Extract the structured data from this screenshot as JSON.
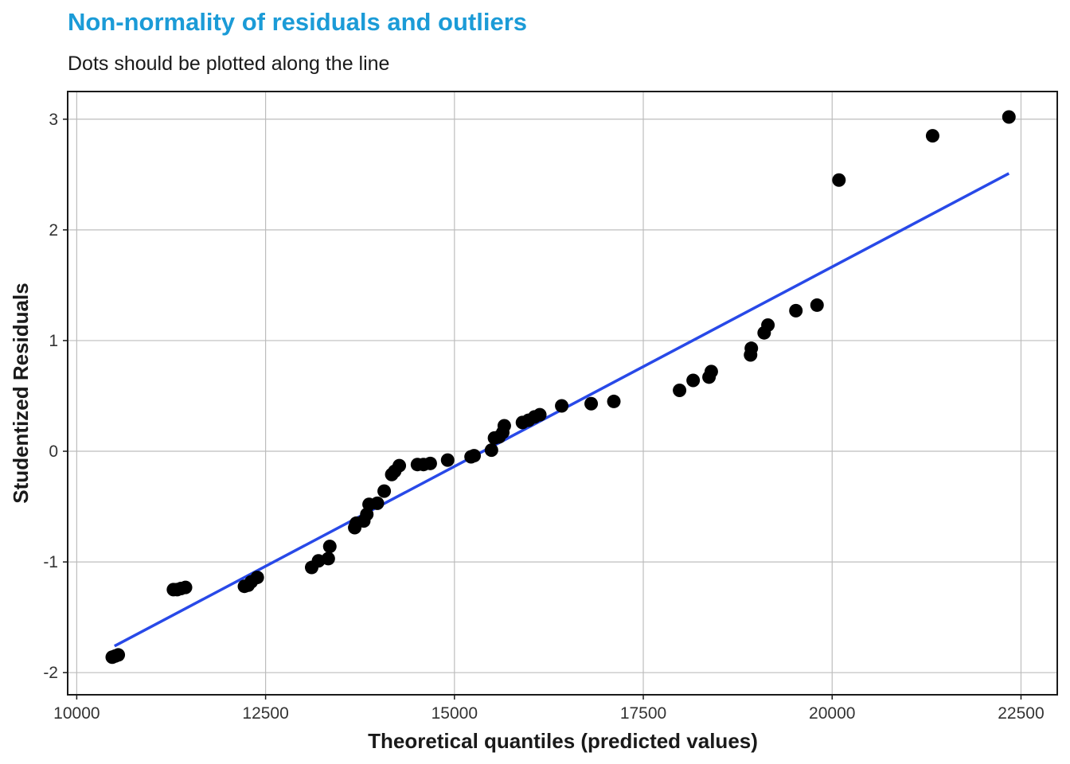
{
  "chart_data": {
    "type": "scatter",
    "title": "Non-normality of residuals and outliers",
    "subtitle": "Dots should be plotted along the line",
    "xlabel": "Theoretical quantiles (predicted values)",
    "ylabel": "Studentized Residuals",
    "xlim": [
      9880,
      22980
    ],
    "ylim": [
      -2.2,
      3.25
    ],
    "xticks": [
      10000,
      12500,
      15000,
      17500,
      20000,
      22500
    ],
    "xtick_labels": [
      "10000",
      "12500",
      "15000",
      "17500",
      "20000",
      "22500"
    ],
    "yticks": [
      -2,
      -1,
      0,
      1,
      2,
      3
    ],
    "ytick_labels": [
      "-2",
      "-1",
      "0",
      "1",
      "2",
      "3"
    ],
    "grid": true,
    "points": [
      {
        "x": 10470,
        "y": -1.86
      },
      {
        "x": 10510,
        "y": -1.85
      },
      {
        "x": 10550,
        "y": -1.84
      },
      {
        "x": 11280,
        "y": -1.25
      },
      {
        "x": 11330,
        "y": -1.25
      },
      {
        "x": 11380,
        "y": -1.24
      },
      {
        "x": 11440,
        "y": -1.23
      },
      {
        "x": 12220,
        "y": -1.22
      },
      {
        "x": 12270,
        "y": -1.21
      },
      {
        "x": 12310,
        "y": -1.18
      },
      {
        "x": 12390,
        "y": -1.14
      },
      {
        "x": 13110,
        "y": -1.05
      },
      {
        "x": 13200,
        "y": -0.99
      },
      {
        "x": 13330,
        "y": -0.97
      },
      {
        "x": 13350,
        "y": -0.86
      },
      {
        "x": 13680,
        "y": -0.69
      },
      {
        "x": 13700,
        "y": -0.65
      },
      {
        "x": 13800,
        "y": -0.63
      },
      {
        "x": 13840,
        "y": -0.57
      },
      {
        "x": 13870,
        "y": -0.48
      },
      {
        "x": 13980,
        "y": -0.47
      },
      {
        "x": 14070,
        "y": -0.36
      },
      {
        "x": 14170,
        "y": -0.21
      },
      {
        "x": 14210,
        "y": -0.18
      },
      {
        "x": 14270,
        "y": -0.13
      },
      {
        "x": 14510,
        "y": -0.12
      },
      {
        "x": 14590,
        "y": -0.12
      },
      {
        "x": 14680,
        "y": -0.11
      },
      {
        "x": 14910,
        "y": -0.08
      },
      {
        "x": 15220,
        "y": -0.05
      },
      {
        "x": 15260,
        "y": -0.04
      },
      {
        "x": 15490,
        "y": 0.01
      },
      {
        "x": 15530,
        "y": 0.12
      },
      {
        "x": 15590,
        "y": 0.13
      },
      {
        "x": 15640,
        "y": 0.17
      },
      {
        "x": 15660,
        "y": 0.23
      },
      {
        "x": 15900,
        "y": 0.26
      },
      {
        "x": 15980,
        "y": 0.28
      },
      {
        "x": 16060,
        "y": 0.31
      },
      {
        "x": 16130,
        "y": 0.33
      },
      {
        "x": 16420,
        "y": 0.41
      },
      {
        "x": 16810,
        "y": 0.43
      },
      {
        "x": 17110,
        "y": 0.45
      },
      {
        "x": 17980,
        "y": 0.55
      },
      {
        "x": 18160,
        "y": 0.64
      },
      {
        "x": 18370,
        "y": 0.67
      },
      {
        "x": 18400,
        "y": 0.72
      },
      {
        "x": 18920,
        "y": 0.87
      },
      {
        "x": 18930,
        "y": 0.93
      },
      {
        "x": 19100,
        "y": 1.07
      },
      {
        "x": 19150,
        "y": 1.14
      },
      {
        "x": 19520,
        "y": 1.27
      },
      {
        "x": 19800,
        "y": 1.32
      },
      {
        "x": 20090,
        "y": 2.45
      },
      {
        "x": 21330,
        "y": 2.85
      },
      {
        "x": 22340,
        "y": 3.02
      }
    ],
    "reference_line": {
      "x": [
        10500,
        22340
      ],
      "y": [
        -1.76,
        2.51
      ]
    }
  },
  "colors": {
    "title": "#1b9bd7",
    "points": "#000000",
    "line": "#2849e8",
    "grid": "#bdbdbd",
    "panel_border": "#1a1a1a"
  }
}
